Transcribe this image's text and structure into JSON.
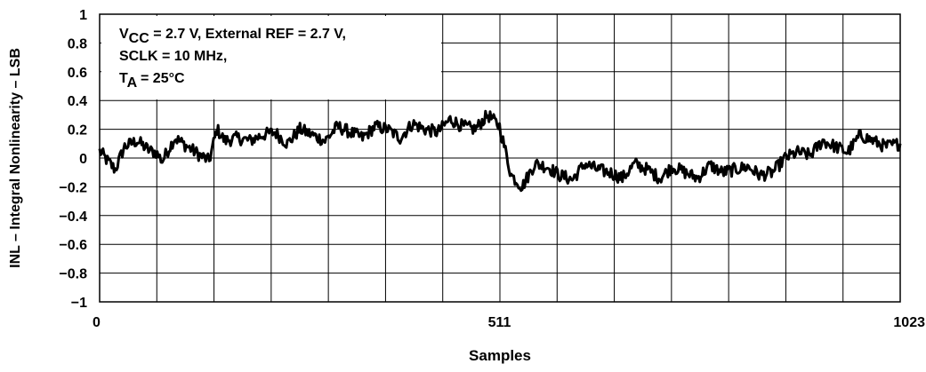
{
  "chart_data": {
    "type": "line",
    "title": "",
    "xlabel": "Samples",
    "ylabel": "INL – Integral Nonlinearity – LSB",
    "xlim": [
      0,
      1023
    ],
    "ylim": [
      -1,
      1
    ],
    "x_ticks": [
      "0",
      "511",
      "1023"
    ],
    "y_ticks": [
      "1",
      "0.8",
      "0.6",
      "0.4",
      "0.2",
      "0",
      "−0.2",
      "−0.4",
      "−0.6",
      "−0.8",
      "−1"
    ],
    "grid": true,
    "annotation": {
      "line1": {
        "main": "V",
        "sub": "CC",
        "rest": " = 2.7 V, External REF = 2.7 V,"
      },
      "line2": {
        "text": "SCLK = 10 MHz,"
      },
      "line3": {
        "main": "T",
        "sub": "A",
        "rest": " = 25°C"
      }
    },
    "series": [
      {
        "x": [
          0,
          10,
          20,
          32,
          48,
          64,
          72,
          80,
          96,
          112,
          128,
          140,
          150,
          160,
          176,
          192,
          208,
          224,
          240,
          256,
          272,
          288,
          304,
          320,
          336,
          352,
          368,
          384,
          400,
          416,
          432,
          448,
          464,
          480,
          496,
          511,
          526,
          540,
          556,
          572,
          588,
          604,
          620,
          636,
          652,
          668,
          684,
          700,
          716,
          732,
          748,
          764,
          780,
          796,
          812,
          828,
          844,
          860,
          876,
          892,
          908,
          924,
          940,
          956,
          972,
          988,
          1004,
          1023
        ],
        "values": [
          0.05,
          -0.02,
          -0.08,
          0.08,
          0.12,
          0.05,
          0.04,
          -0.02,
          0.14,
          0.08,
          0.02,
          -0.02,
          0.2,
          0.12,
          0.14,
          0.12,
          0.16,
          0.18,
          0.1,
          0.2,
          0.16,
          0.12,
          0.22,
          0.18,
          0.14,
          0.22,
          0.2,
          0.14,
          0.24,
          0.2,
          0.18,
          0.27,
          0.22,
          0.2,
          0.3,
          0.22,
          -0.12,
          -0.2,
          -0.04,
          -0.06,
          -0.12,
          -0.15,
          -0.04,
          -0.08,
          -0.1,
          -0.14,
          -0.04,
          -0.08,
          -0.14,
          -0.06,
          -0.1,
          -0.14,
          -0.05,
          -0.1,
          -0.08,
          -0.06,
          -0.12,
          -0.1,
          0.0,
          0.04,
          0.02,
          0.12,
          0.08,
          0.04,
          0.16,
          0.12,
          0.08,
          0.1
        ]
      }
    ]
  }
}
